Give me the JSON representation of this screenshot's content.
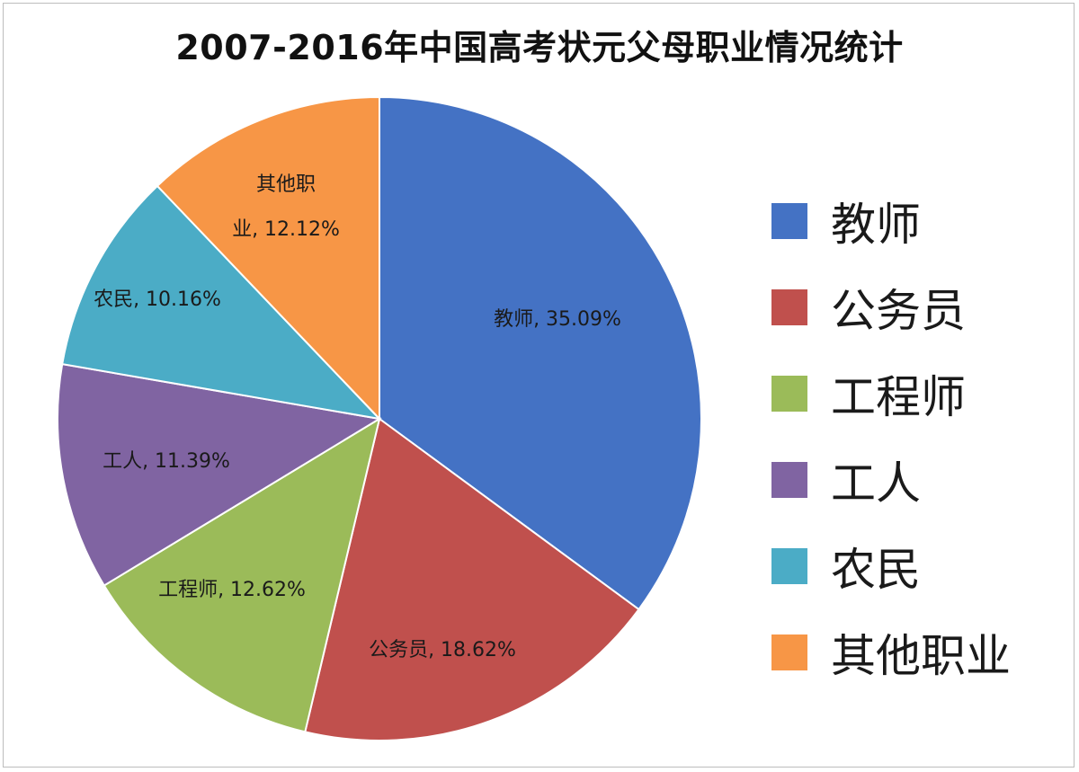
{
  "chart_data": {
    "type": "pie",
    "title": "2007-2016年中国高考状元父母职业情况统计",
    "legend_position": "right",
    "slices": [
      {
        "label": "教师",
        "value": 35.09,
        "value_text": "35.09%",
        "color": "#4472C4"
      },
      {
        "label": "公务员",
        "value": 18.62,
        "value_text": "18.62%",
        "color": "#C0504D"
      },
      {
        "label": "工程师",
        "value": 12.62,
        "value_text": "12.62%",
        "color": "#9BBB59"
      },
      {
        "label": "工人",
        "value": 11.39,
        "value_text": "11.39%",
        "color": "#8064A2"
      },
      {
        "label": "农民",
        "value": 10.16,
        "value_text": "10.16%",
        "color": "#4BACC6"
      },
      {
        "label": "其他职业",
        "value": 12.12,
        "value_text": "12.12%",
        "color": "#F79646"
      }
    ]
  }
}
